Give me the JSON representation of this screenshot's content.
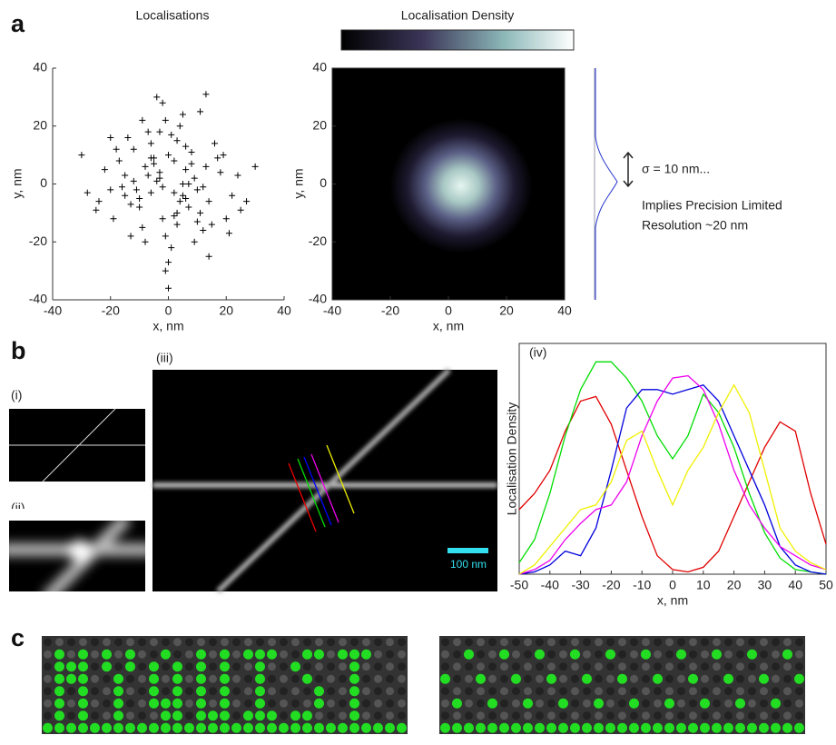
{
  "labels": {
    "a": "a",
    "b": "b",
    "c": "c",
    "i": "(i)",
    "ii": "(ii)",
    "iii": "(iii)",
    "scale_bar": "100 nm"
  },
  "chart_data": [
    {
      "type": "scatter",
      "title": "Localisations",
      "xlabel": "x, nm",
      "ylabel": "y, nm",
      "color": "#000000",
      "x": [
        -3,
        5,
        -8,
        12,
        0,
        -15,
        7,
        -2,
        3,
        -10,
        18,
        -6,
        9,
        -1,
        14,
        -12,
        4,
        -20,
        2,
        -5,
        11,
        -9,
        6,
        -4,
        16,
        -13,
        1,
        8,
        -7,
        22,
        -17,
        10,
        -3,
        5,
        -11,
        13,
        -25,
        0,
        19,
        -8,
        3,
        -14,
        7,
        -2,
        24,
        -19,
        12,
        -6,
        2,
        -30,
        27,
        -4,
        9,
        -16,
        15,
        -1,
        6,
        -22,
        4,
        -9,
        20,
        -12,
        0,
        8,
        -5,
        30,
        -28,
        11,
        -18,
        3,
        -7,
        14,
        -3,
        17,
        -10,
        1,
        -24,
        21,
        -2,
        6,
        -13,
        10,
        -6,
        25,
        -20,
        5,
        -1,
        13,
        -15,
        2
      ],
      "y": [
        2,
        -4,
        6,
        -1,
        10,
        3,
        -8,
        -12,
        15,
        -5,
        4,
        9,
        2,
        -18,
        -6,
        12,
        20,
        -2,
        -3,
        7,
        -10,
        -15,
        5,
        1,
        14,
        -7,
        -22,
        11,
        18,
        -4,
        8,
        -13,
        4,
        24,
        -2,
        6,
        -9,
        -27,
        10,
        -20,
        -10,
        16,
        0,
        28,
        3,
        -12,
        -16,
        -3,
        8,
        10,
        -6,
        30,
        -20,
        -1,
        -14,
        -30,
        13,
        5,
        -6,
        22,
        -12,
        1,
        -36,
        7,
        9,
        6,
        -3,
        25,
        12,
        -14,
        3,
        -25,
        18,
        9,
        -8,
        17,
        -6,
        -17,
        -1,
        -5,
        -18,
        -2,
        14,
        -9,
        16,
        0,
        22,
        31,
        -4,
        -11
      ],
      "xlim": [
        -40,
        40
      ],
      "ylim": [
        -40,
        40
      ],
      "xticks": [
        -40,
        -20,
        0,
        20,
        40
      ],
      "yticks": [
        -40,
        -20,
        0,
        20,
        40
      ]
    },
    {
      "type": "image",
      "title": "Localisation Density",
      "xlabel": "x, nm",
      "ylabel": "y, nm",
      "xlim": [
        -40,
        40
      ],
      "ylim": [
        -40,
        40
      ],
      "xticks": [
        -40,
        -20,
        0,
        20,
        40
      ],
      "yticks": [
        -40,
        -20,
        0,
        20,
        40
      ],
      "annotations": [
        "σ = 10 nm...",
        "Implies Precision Limited",
        "Resolution ~20 nm"
      ]
    },
    {
      "type": "line",
      "title": "(iv)",
      "xlabel": "x, nm",
      "ylabel": "Localisation Density",
      "x": [
        -50,
        -45,
        -40,
        -35,
        -30,
        -25,
        -20,
        -15,
        -10,
        -5,
        0,
        5,
        10,
        15,
        20,
        25,
        30,
        35,
        40,
        45,
        50
      ],
      "xlim": [
        -50,
        50
      ],
      "ylim": [
        0,
        1
      ],
      "xticks": [
        -50,
        -40,
        -30,
        -20,
        -10,
        0,
        10,
        20,
        30,
        40,
        50
      ],
      "series": [
        {
          "color": "#e00000",
          "values": [
            0.28,
            0.35,
            0.45,
            0.62,
            0.75,
            0.77,
            0.65,
            0.45,
            0.25,
            0.08,
            0.02,
            0.01,
            0.03,
            0.1,
            0.25,
            0.4,
            0.55,
            0.66,
            0.62,
            0.35,
            0.13
          ]
        },
        {
          "color": "#00dd00",
          "values": [
            0.05,
            0.15,
            0.35,
            0.6,
            0.8,
            0.92,
            0.92,
            0.85,
            0.75,
            0.6,
            0.5,
            0.6,
            0.78,
            0.7,
            0.55,
            0.35,
            0.18,
            0.07,
            0.02,
            0.01,
            0.0
          ]
        },
        {
          "color": "#0000dd",
          "values": [
            0.0,
            0.01,
            0.04,
            0.1,
            0.08,
            0.2,
            0.45,
            0.72,
            0.8,
            0.8,
            0.78,
            0.8,
            0.82,
            0.75,
            0.6,
            0.45,
            0.3,
            0.12,
            0.04,
            0.01,
            0.0
          ]
        },
        {
          "color": "#ee00ee",
          "values": [
            0.0,
            0.02,
            0.06,
            0.15,
            0.22,
            0.28,
            0.3,
            0.4,
            0.6,
            0.75,
            0.85,
            0.86,
            0.8,
            0.65,
            0.45,
            0.3,
            0.2,
            0.12,
            0.08,
            0.04,
            0.02
          ]
        },
        {
          "color": "#f0f000",
          "values": [
            0.0,
            0.04,
            0.12,
            0.2,
            0.28,
            0.3,
            0.4,
            0.58,
            0.62,
            0.45,
            0.3,
            0.45,
            0.55,
            0.7,
            0.82,
            0.7,
            0.45,
            0.2,
            0.1,
            0.05,
            0.02
          ]
        }
      ]
    }
  ]
}
